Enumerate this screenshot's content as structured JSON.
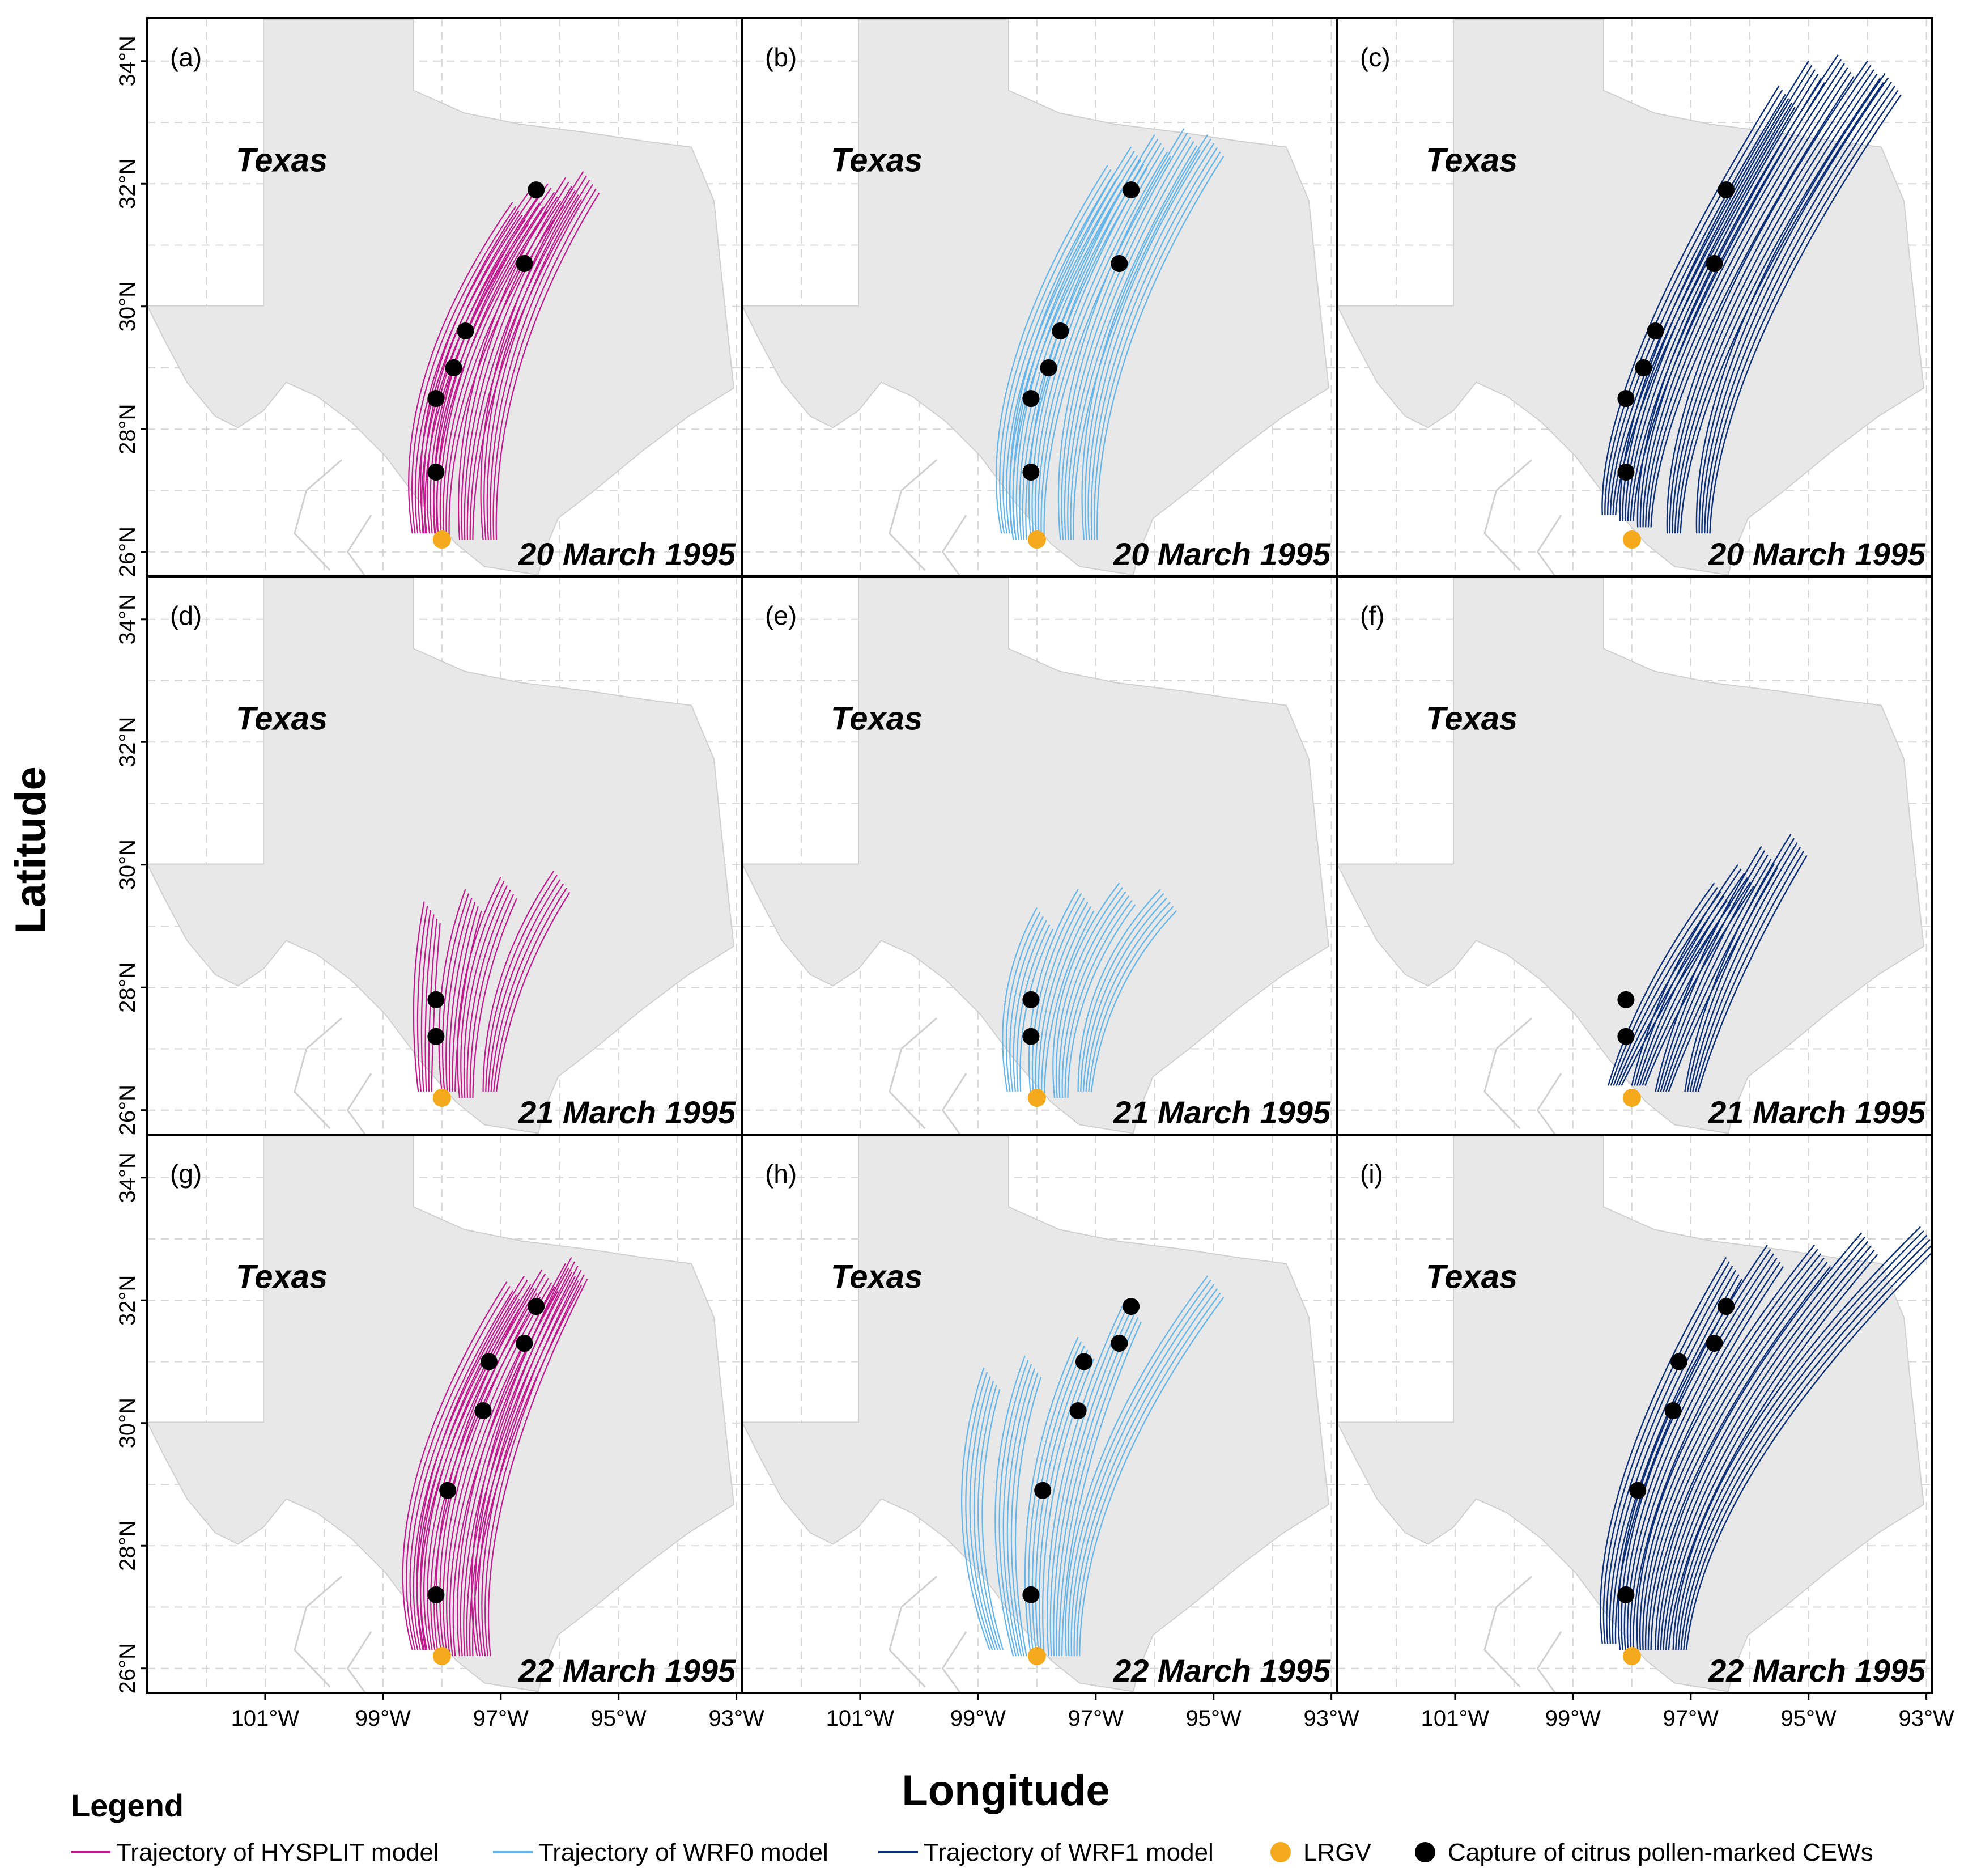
{
  "figure": {
    "xlabel": "Longitude",
    "ylabel": "Latitude",
    "state_label": "Texas",
    "x_ticks": [
      "101°W",
      "99°W",
      "97°W",
      "95°W",
      "93°W"
    ],
    "x_tick_values": [
      -101,
      -99,
      -97,
      -95,
      -93
    ],
    "y_ticks": [
      "26°N",
      "28°N",
      "30°N",
      "32°N",
      "34°N"
    ],
    "y_tick_values": [
      26,
      28,
      30,
      32,
      34
    ],
    "xlim": [
      -103.0,
      -92.9
    ],
    "ylim": [
      25.6,
      34.7
    ]
  },
  "legend": {
    "title": "Legend",
    "items": [
      {
        "label": "Trajectory of HYSPLIT model",
        "kind": "line",
        "color": "#c2188f"
      },
      {
        "label": "Trajectory of WRF0 model",
        "kind": "line",
        "color": "#62b4ec"
      },
      {
        "label": "Trajectory of WRF1 model",
        "kind": "line",
        "color": "#0b2f7a"
      },
      {
        "label": "LRGV",
        "kind": "dot",
        "color": "#f5a91c"
      },
      {
        "label": "Capture of citrus pollen-marked CEWs",
        "kind": "dot",
        "color": "#000000"
      }
    ]
  },
  "chart_data": {
    "type": "map-trajectories",
    "source_lrgv": {
      "lon": -98.0,
      "lat": 26.2
    },
    "models": [
      {
        "name": "HYSPLIT",
        "color": "#c2188f",
        "line_width": 2.2
      },
      {
        "name": "WRF0",
        "color": "#62b4ec",
        "line_width": 2.2
      },
      {
        "name": "WRF1",
        "color": "#0b2f7a",
        "line_width": 2.4
      }
    ],
    "dates": [
      "20 March 1995",
      "21 March 1995",
      "22 March 1995"
    ],
    "panels": [
      {
        "label": "(a)",
        "date": "20 March 1995",
        "model": "HYSPLIT",
        "trajectories": [
          {
            "start": [
              -98.5,
              26.3
            ],
            "mid": [
              -98.9,
              28.8
            ],
            "end": [
              -96.8,
              31.7
            ]
          },
          {
            "start": [
              -98.3,
              26.3
            ],
            "mid": [
              -98.7,
              28.9
            ],
            "end": [
              -96.5,
              31.9
            ]
          },
          {
            "start": [
              -98.1,
              26.2
            ],
            "mid": [
              -98.4,
              29.0
            ],
            "end": [
              -96.2,
              32.0
            ]
          },
          {
            "start": [
              -97.7,
              26.2
            ],
            "mid": [
              -97.9,
              29.1
            ],
            "end": [
              -95.9,
              32.1
            ]
          },
          {
            "start": [
              -97.3,
              26.2
            ],
            "mid": [
              -97.6,
              29.2
            ],
            "end": [
              -95.6,
              32.2
            ]
          }
        ],
        "captures": [
          [
            -96.4,
            31.9
          ],
          [
            -96.6,
            30.7
          ],
          [
            -97.6,
            29.6
          ],
          [
            -97.8,
            29.0
          ],
          [
            -98.1,
            28.5
          ],
          [
            -98.1,
            27.3
          ]
        ]
      },
      {
        "label": "(b)",
        "date": "20 March 1995",
        "model": "WRF0",
        "trajectories": [
          {
            "start": [
              -98.6,
              26.3
            ],
            "mid": [
              -99.1,
              28.8
            ],
            "end": [
              -96.8,
              32.3
            ]
          },
          {
            "start": [
              -98.4,
              26.2
            ],
            "mid": [
              -98.8,
              29.0
            ],
            "end": [
              -96.4,
              32.6
            ]
          },
          {
            "start": [
              -98.1,
              26.2
            ],
            "mid": [
              -98.4,
              29.1
            ],
            "end": [
              -96.0,
              32.8
            ]
          },
          {
            "start": [
              -97.6,
              26.2
            ],
            "mid": [
              -97.9,
              29.2
            ],
            "end": [
              -95.5,
              32.9
            ]
          },
          {
            "start": [
              -97.2,
              26.2
            ],
            "mid": [
              -97.5,
              29.3
            ],
            "end": [
              -95.1,
              32.8
            ]
          }
        ],
        "captures": [
          [
            -96.4,
            31.9
          ],
          [
            -96.6,
            30.7
          ],
          [
            -97.6,
            29.6
          ],
          [
            -97.8,
            29.0
          ],
          [
            -98.1,
            28.5
          ],
          [
            -98.1,
            27.3
          ]
        ]
      },
      {
        "label": "(c)",
        "date": "20 March 1995",
        "model": "WRF1",
        "trajectories": [
          {
            "start": [
              -98.5,
              26.6
            ],
            "mid": [
              -98.6,
              28.8
            ],
            "end": [
              -95.5,
              33.6
            ]
          },
          {
            "start": [
              -98.2,
              26.5
            ],
            "mid": [
              -98.3,
              29.0
            ],
            "end": [
              -95.0,
              34.0
            ]
          },
          {
            "start": [
              -97.9,
              26.4
            ],
            "mid": [
              -98.0,
              29.1
            ],
            "end": [
              -94.5,
              34.1
            ]
          },
          {
            "start": [
              -97.4,
              26.3
            ],
            "mid": [
              -97.5,
              29.2
            ],
            "end": [
              -94.0,
              34.0
            ]
          },
          {
            "start": [
              -96.9,
              26.3
            ],
            "mid": [
              -97.0,
              29.3
            ],
            "end": [
              -93.7,
              33.8
            ]
          }
        ],
        "captures": [
          [
            -96.4,
            31.9
          ],
          [
            -96.6,
            30.7
          ],
          [
            -97.6,
            29.6
          ],
          [
            -97.8,
            29.0
          ],
          [
            -98.1,
            28.5
          ],
          [
            -98.1,
            27.3
          ]
        ]
      },
      {
        "label": "(d)",
        "date": "21 March 1995",
        "model": "HYSPLIT",
        "trajectories": [
          {
            "start": [
              -98.4,
              26.3
            ],
            "mid": [
              -98.6,
              27.9
            ],
            "end": [
              -98.3,
              29.4
            ]
          },
          {
            "start": [
              -98.0,
              26.3
            ],
            "mid": [
              -98.2,
              28.0
            ],
            "end": [
              -97.6,
              29.6
            ]
          },
          {
            "start": [
              -97.7,
              26.2
            ],
            "mid": [
              -97.9,
              28.1
            ],
            "end": [
              -97.0,
              29.8
            ]
          },
          {
            "start": [
              -97.3,
              26.3
            ],
            "mid": [
              -97.3,
              28.2
            ],
            "end": [
              -96.1,
              29.9
            ]
          }
        ],
        "captures": [
          [
            -98.1,
            27.8
          ],
          [
            -98.1,
            27.2
          ]
        ]
      },
      {
        "label": "(e)",
        "date": "21 March 1995",
        "model": "WRF0",
        "trajectories": [
          {
            "start": [
              -98.5,
              26.3
            ],
            "mid": [
              -98.8,
              27.9
            ],
            "end": [
              -98.0,
              29.3
            ]
          },
          {
            "start": [
              -98.1,
              26.2
            ],
            "mid": [
              -98.3,
              28.0
            ],
            "end": [
              -97.3,
              29.6
            ]
          },
          {
            "start": [
              -97.7,
              26.2
            ],
            "mid": [
              -97.9,
              28.1
            ],
            "end": [
              -96.6,
              29.7
            ]
          },
          {
            "start": [
              -97.3,
              26.3
            ],
            "mid": [
              -97.3,
              28.2
            ],
            "end": [
              -95.9,
              29.6
            ]
          }
        ],
        "captures": [
          [
            -98.1,
            27.8
          ],
          [
            -98.1,
            27.2
          ]
        ]
      },
      {
        "label": "(f)",
        "date": "21 March 1995",
        "model": "WRF1",
        "trajectories": [
          {
            "start": [
              -98.4,
              26.4
            ],
            "mid": [
              -97.9,
              28.0
            ],
            "end": [
              -96.6,
              29.7
            ]
          },
          {
            "start": [
              -98.0,
              26.4
            ],
            "mid": [
              -97.6,
              28.1
            ],
            "end": [
              -96.2,
              30.0
            ]
          },
          {
            "start": [
              -97.6,
              26.3
            ],
            "mid": [
              -97.2,
              28.1
            ],
            "end": [
              -95.8,
              30.3
            ]
          },
          {
            "start": [
              -97.1,
              26.3
            ],
            "mid": [
              -96.8,
              28.2
            ],
            "end": [
              -95.3,
              30.5
            ]
          }
        ],
        "captures": [
          [
            -98.1,
            27.8
          ],
          [
            -98.1,
            27.2
          ]
        ]
      },
      {
        "label": "(g)",
        "date": "22 March 1995",
        "model": "HYSPLIT",
        "trajectories": [
          {
            "start": [
              -98.5,
              26.3
            ],
            "mid": [
              -99.2,
              28.8
            ],
            "end": [
              -96.9,
              32.3
            ]
          },
          {
            "start": [
              -98.3,
              26.3
            ],
            "mid": [
              -98.9,
              28.9
            ],
            "end": [
              -96.6,
              32.4
            ]
          },
          {
            "start": [
              -98.0,
              26.2
            ],
            "mid": [
              -98.5,
              29.0
            ],
            "end": [
              -96.3,
              32.5
            ]
          },
          {
            "start": [
              -97.7,
              26.2
            ],
            "mid": [
              -98.0,
              29.0
            ],
            "end": [
              -95.9,
              32.6
            ]
          },
          {
            "start": [
              -97.4,
              26.2
            ],
            "mid": [
              -97.9,
              28.9
            ],
            "end": [
              -95.8,
              32.7
            ]
          }
        ],
        "captures": [
          [
            -96.4,
            31.9
          ],
          [
            -96.6,
            31.3
          ],
          [
            -97.2,
            31.0
          ],
          [
            -97.3,
            30.2
          ],
          [
            -97.9,
            28.9
          ],
          [
            -98.1,
            27.2
          ]
        ]
      },
      {
        "label": "(h)",
        "date": "22 March 1995",
        "model": "WRF0",
        "trajectories": [
          {
            "start": [
              -98.8,
              26.3
            ],
            "mid": [
              -99.7,
              28.6
            ],
            "end": [
              -98.9,
              30.9
            ]
          },
          {
            "start": [
              -98.4,
              26.2
            ],
            "mid": [
              -99.1,
              28.8
            ],
            "end": [
              -98.2,
              31.1
            ]
          },
          {
            "start": [
              -98.1,
              26.2
            ],
            "mid": [
              -98.5,
              28.9
            ],
            "end": [
              -97.3,
              31.4
            ]
          },
          {
            "start": [
              -97.8,
              26.2
            ],
            "mid": [
              -98.0,
              29.0
            ],
            "end": [
              -96.5,
              32.0
            ]
          },
          {
            "start": [
              -97.5,
              26.2
            ],
            "mid": [
              -97.7,
              29.1
            ],
            "end": [
              -95.1,
              32.4
            ]
          }
        ],
        "captures": [
          [
            -96.4,
            31.9
          ],
          [
            -96.6,
            31.3
          ],
          [
            -97.2,
            31.0
          ],
          [
            -97.3,
            30.2
          ],
          [
            -97.9,
            28.9
          ],
          [
            -98.1,
            27.2
          ]
        ]
      },
      {
        "label": "(i)",
        "date": "22 March 1995",
        "model": "WRF1",
        "trajectories": [
          {
            "start": [
              -98.5,
              26.4
            ],
            "mid": [
              -98.8,
              28.8
            ],
            "end": [
              -96.4,
              32.7
            ]
          },
          {
            "start": [
              -98.2,
              26.3
            ],
            "mid": [
              -98.5,
              29.0
            ],
            "end": [
              -95.7,
              32.9
            ]
          },
          {
            "start": [
              -97.9,
              26.3
            ],
            "mid": [
              -98.1,
              29.1
            ],
            "end": [
              -94.9,
              32.9
            ]
          },
          {
            "start": [
              -97.6,
              26.3
            ],
            "mid": [
              -97.6,
              29.2
            ],
            "end": [
              -94.1,
              33.1
            ]
          },
          {
            "start": [
              -97.3,
              26.3
            ],
            "mid": [
              -97.2,
              29.3
            ],
            "end": [
              -93.1,
              33.2
            ]
          }
        ],
        "captures": [
          [
            -96.4,
            31.9
          ],
          [
            -96.6,
            31.3
          ],
          [
            -97.2,
            31.0
          ],
          [
            -97.3,
            30.2
          ],
          [
            -97.9,
            28.9
          ],
          [
            -98.1,
            27.2
          ]
        ]
      }
    ]
  }
}
